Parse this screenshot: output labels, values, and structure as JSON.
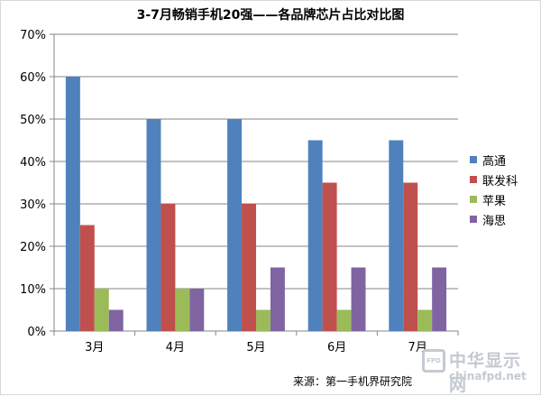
{
  "chart_data": {
    "type": "bar",
    "title": "3-7月畅销手机20强——各品牌芯片占比对比图",
    "categories": [
      "3月",
      "4月",
      "5月",
      "6月",
      "7月"
    ],
    "series": [
      {
        "name": "高通",
        "color": "#4f81bd",
        "values": [
          60,
          50,
          50,
          45,
          45
        ]
      },
      {
        "name": "联发科",
        "color": "#c0504d",
        "values": [
          25,
          30,
          30,
          35,
          35
        ]
      },
      {
        "name": "苹果",
        "color": "#9bbb59",
        "values": [
          10,
          10,
          5,
          5,
          5
        ]
      },
      {
        "name": "海思",
        "color": "#8064a2",
        "values": [
          5,
          10,
          15,
          15,
          15
        ]
      }
    ],
    "ylim": [
      0,
      70
    ],
    "yticks": [
      "0%",
      "10%",
      "20%",
      "30%",
      "40%",
      "50%",
      "60%",
      "70%"
    ],
    "y_unit": "percent",
    "grid": true,
    "legend_position": "right"
  },
  "footer": {
    "source": "来源：第一手机界研究院"
  },
  "watermark": {
    "logo_text": "FPD",
    "name": "中华显示网",
    "url": "chinafpd.net"
  }
}
